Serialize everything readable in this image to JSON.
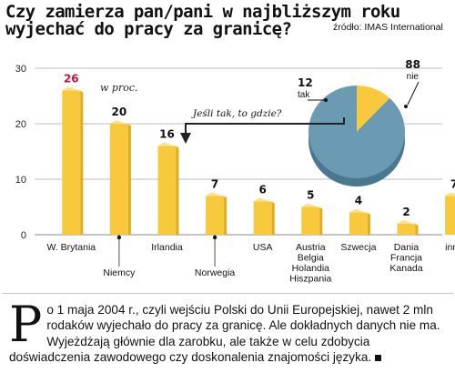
{
  "title": "Czy zamierza pan/pani w najbliższym roku wyjechać do pracy za granicę?",
  "source": "źródło: IMAS International",
  "chart_data": [
    {
      "type": "bar",
      "unit_label": "w proc.",
      "categories": [
        "W. Brytania",
        "Niemcy",
        "Irlandia",
        "Norwegia",
        "USA",
        "Austria\nBelgia\nHolandia\nHiszpania",
        "Szwecja",
        "Dania\nFrancja\nKanada",
        "inne"
      ],
      "values": [
        26,
        20,
        16,
        7,
        6,
        5,
        4,
        2,
        7
      ],
      "ylim": [
        0,
        30
      ],
      "yticks": [
        0,
        10,
        20,
        30
      ],
      "grid": true,
      "highlight_color": "#c0143c",
      "bar_color": "#f9c93d"
    },
    {
      "type": "pie",
      "slices": [
        {
          "label": "tak",
          "value": 12,
          "color": "#f9c93d"
        },
        {
          "label": "nie",
          "value": 88,
          "color": "#6b9ab3"
        }
      ]
    }
  ],
  "callout": "Jeśli tak, to gdzie?",
  "body": {
    "dropcap": "P",
    "text": "o 1 maja 2004 r., czyli wejściu Polski do Unii Europejskiej, nawet 2 mln rodaków wyjechało do pracy za granicę. Ale dokładnych danych nie ma. Wyjeżdżają głównie dla zarobku, ale także w celu zdobycia doświadczenia zawodowego czy doskonalenia znajomości języka."
  }
}
